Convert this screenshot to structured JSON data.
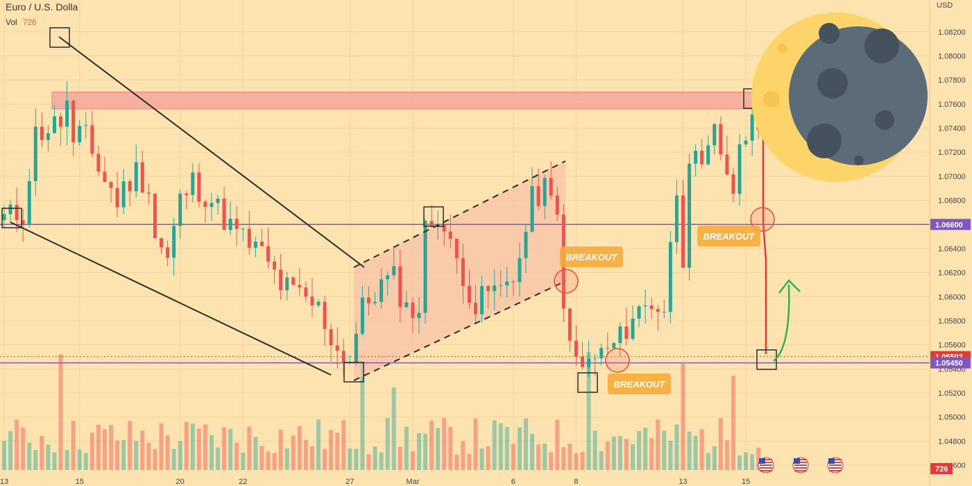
{
  "header": {
    "symbol": "Euro / U.S. Dolla",
    "vol_label": "Vol",
    "vol_value": "726"
  },
  "axis": {
    "currency": "USD",
    "volume_tag": "726"
  },
  "annotations": {
    "breakout1": "BREAKOUT",
    "breakout2": "BREAKOUT",
    "breakout3": "BREAKOUT"
  },
  "colors": {
    "background": "#fde3b0",
    "up": "#26a69a",
    "down": "#ef5350",
    "level_line": "#7e57c2",
    "resistance_zone": "#f4a09a",
    "channel_fill": "#f7c0a6",
    "breakout_badge": "#f6ab3a",
    "moon_body": "#5c6b78",
    "moon_glow": "#fcd46a",
    "arrow_green": "#2db34a",
    "drop_line": "#e53935"
  },
  "icons": [
    "moon-icon",
    "us-flag-icon"
  ],
  "chart_data": {
    "type": "candlestick",
    "title": "Euro / U.S. Dolla",
    "ylabel": "USD",
    "ylim": [
      1.0456,
      1.0832
    ],
    "y_ticks": [
      "1.08200",
      "1.08000",
      "1.07800",
      "1.07600",
      "1.07400",
      "1.07200",
      "1.07000",
      "1.06800",
      "1.06600",
      "1.06400",
      "1.06200",
      "1.06000",
      "1.05800",
      "1.05600",
      "1.05400",
      "1.05200",
      "1.05000",
      "1.04800",
      "1.04600"
    ],
    "x_ticks": [
      {
        "label": "13",
        "bar": 0
      },
      {
        "label": "15",
        "bar": 12
      },
      {
        "label": "20",
        "bar": 28
      },
      {
        "label": "22",
        "bar": 38
      },
      {
        "label": "27",
        "bar": 55
      },
      {
        "label": "Mar",
        "bar": 65
      },
      {
        "label": "6",
        "bar": 81
      },
      {
        "label": "8",
        "bar": 91
      },
      {
        "label": "13",
        "bar": 108
      },
      {
        "label": "15",
        "bar": 118
      }
    ],
    "highlighted_levels": [
      {
        "value": "1.06600",
        "color": "#7e57c2"
      },
      {
        "value": "1.05502",
        "color": "#e53935"
      },
      {
        "value": "1.05450",
        "color": "#7e57c2"
      }
    ],
    "resistance_zone": [
      1.0756,
      1.077
    ],
    "bars_total": 121,
    "anchors": [
      [
        0,
        1.0665
      ],
      [
        3,
        1.067
      ],
      [
        5,
        1.0735
      ],
      [
        9,
        1.0745
      ],
      [
        10,
        1.076
      ],
      [
        11,
        1.072
      ],
      [
        13,
        1.0742
      ],
      [
        15,
        1.0705
      ],
      [
        18,
        1.068
      ],
      [
        21,
        1.0705
      ],
      [
        23,
        1.069
      ],
      [
        24,
        1.065
      ],
      [
        26,
        1.063
      ],
      [
        28,
        1.068
      ],
      [
        30,
        1.0695
      ],
      [
        33,
        1.068
      ],
      [
        36,
        1.0658
      ],
      [
        38,
        1.0648
      ],
      [
        41,
        1.0635
      ],
      [
        44,
        1.061
      ],
      [
        47,
        1.06
      ],
      [
        50,
        1.059
      ],
      [
        53,
        1.0555
      ],
      [
        55,
        1.0548
      ],
      [
        57,
        1.059
      ],
      [
        60,
        1.061
      ],
      [
        62,
        1.0615
      ],
      [
        64,
        1.059
      ],
      [
        66,
        1.059
      ],
      [
        67,
        1.0655
      ],
      [
        69,
        1.067
      ],
      [
        71,
        1.064
      ],
      [
        73,
        1.062
      ],
      [
        75,
        1.059
      ],
      [
        77,
        1.0605
      ],
      [
        79,
        1.0605
      ],
      [
        82,
        1.063
      ],
      [
        84,
        1.068
      ],
      [
        86,
        1.069
      ],
      [
        88,
        1.0665
      ],
      [
        89,
        1.06
      ],
      [
        90,
        1.0555
      ],
      [
        92,
        1.054
      ],
      [
        94,
        1.055
      ],
      [
        96,
        1.0555
      ],
      [
        98,
        1.0565
      ],
      [
        100,
        1.0585
      ],
      [
        103,
        1.0595
      ],
      [
        105,
        1.059
      ],
      [
        106,
        1.064
      ],
      [
        107,
        1.069
      ],
      [
        108,
        1.0635
      ],
      [
        109,
        1.072
      ],
      [
        111,
        1.07
      ],
      [
        113,
        1.0735
      ],
      [
        115,
        1.0705
      ],
      [
        116,
        1.069
      ],
      [
        118,
        1.074
      ],
      [
        120,
        1.075
      ],
      [
        121,
        1.0745
      ]
    ],
    "volume": {
      "max": 1000,
      "spikes": [
        [
          9,
          980
        ],
        [
          57,
          920
        ],
        [
          62,
          700
        ],
        [
          93,
          1000
        ],
        [
          108,
          900
        ],
        [
          116,
          800
        ]
      ]
    }
  }
}
